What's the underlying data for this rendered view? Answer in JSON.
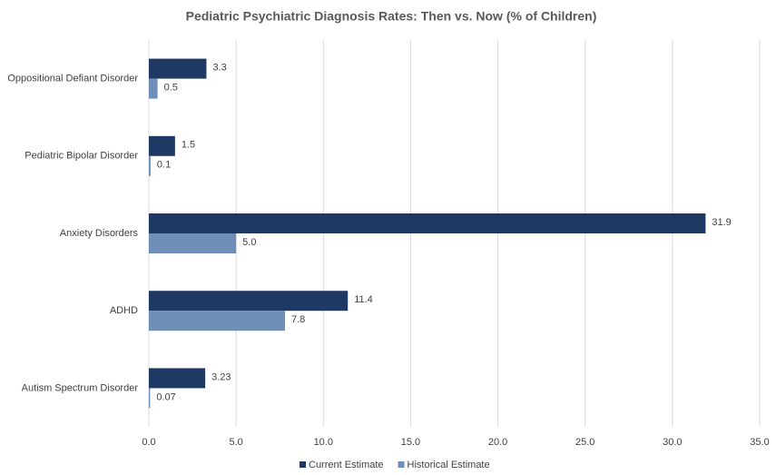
{
  "chart_data": {
    "type": "hbar",
    "title": "Pediatric Psychiatric Diagnosis Rates: Then vs. Now (% of Children)",
    "categories": [
      "Oppositional Defiant Disorder",
      "Pediatric Bipolar Disorder",
      "Anxiety Disorders",
      "ADHD",
      "Autism Spectrum Disorder"
    ],
    "series": [
      {
        "name": "Current Estimate",
        "color": "#203864",
        "values": [
          3.3,
          1.5,
          31.9,
          11.4,
          3.23
        ]
      },
      {
        "name": "Historical Estimate",
        "color": "#6f8fb8",
        "values": [
          0.5,
          0.1,
          5.0,
          7.8,
          0.07
        ],
        "value_labels": [
          "0.5",
          "0.1",
          "5.0",
          "7.8",
          "0.07"
        ]
      }
    ],
    "xlim": [
      0,
      35
    ],
    "xticks": [
      {
        "value": 0,
        "label": "0.0"
      },
      {
        "value": 5,
        "label": "5.0"
      },
      {
        "value": 10,
        "label": "10.0"
      },
      {
        "value": 15,
        "label": "15.0"
      },
      {
        "value": 20,
        "label": "20.0"
      },
      {
        "value": 25,
        "label": "25.0"
      },
      {
        "value": 30,
        "label": "30.0"
      },
      {
        "value": 35,
        "label": "35.0"
      }
    ],
    "grid": true,
    "legend": "bottom"
  }
}
